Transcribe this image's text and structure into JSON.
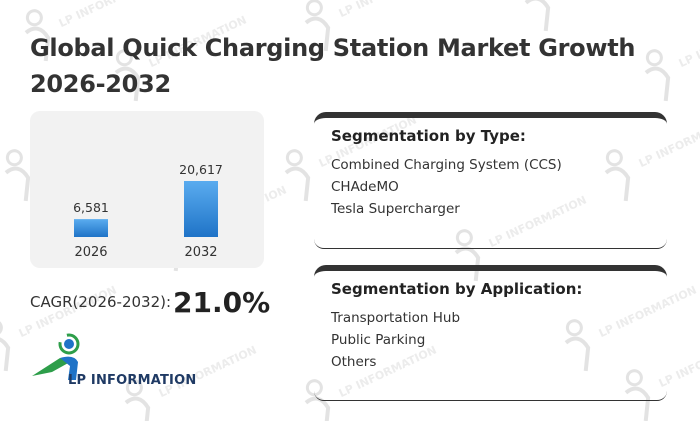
{
  "title": "Global Quick Charging Station Market Growth 2026-2032",
  "chart_data": {
    "type": "bar",
    "categories": [
      "2026",
      "2032"
    ],
    "values": [
      6581,
      20617
    ],
    "value_labels": [
      "6,581",
      "20,617"
    ],
    "ylim": [
      0,
      20617
    ],
    "grid": false,
    "colors": {
      "bar_top": "#5aacef",
      "bar_bottom": "#1f73c7"
    }
  },
  "cagr": {
    "label": "CAGR(2026-2032):",
    "value": "21.0%"
  },
  "logo": {
    "text": "LP INFORMATION"
  },
  "watermark": {
    "text": "LP INFORMATION"
  },
  "segmentation_type": {
    "title": "Segmentation by Type:",
    "items": [
      "Combined Charging System (CCS)",
      "CHAdeMO",
      "Tesla Supercharger"
    ]
  },
  "segmentation_application": {
    "title": "Segmentation by Application:",
    "items": [
      "Transportation Hub",
      "Public Parking",
      "Others"
    ]
  }
}
